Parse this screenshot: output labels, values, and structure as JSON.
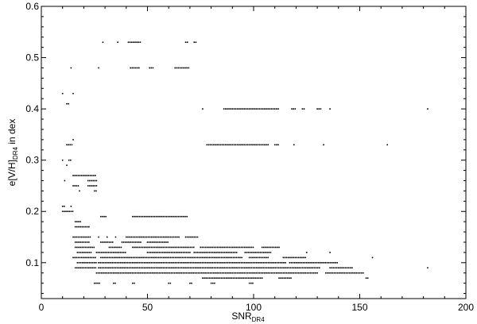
{
  "chart_data": {
    "type": "scatter",
    "title": "",
    "xlabel": "SNR",
    "xlabel_sub": "DR4",
    "ylabel_pre": "e[V/H]",
    "ylabel_sub": "DR4",
    "ylabel_post": " in dex",
    "xlim": [
      0,
      200
    ],
    "ylim": [
      0.03,
      0.6
    ],
    "xticks": [
      0,
      50,
      100,
      150,
      200
    ],
    "yticks": [
      0.1,
      0.2,
      0.3,
      0.4,
      0.5,
      0.6
    ],
    "grid": false,
    "marker_color": "#000000",
    "rows": [
      {
        "y": 0.53,
        "segments": [
          [
            29,
            29
          ],
          [
            36,
            36
          ],
          [
            41,
            47
          ],
          [
            68,
            69
          ],
          [
            72,
            73
          ]
        ]
      },
      {
        "y": 0.48,
        "segments": [
          [
            14,
            14
          ],
          [
            27,
            27
          ],
          [
            42,
            46
          ],
          [
            51,
            53
          ],
          [
            63,
            70
          ]
        ]
      },
      {
        "y": 0.43,
        "segments": [
          [
            10,
            10
          ],
          [
            15,
            15
          ]
        ]
      },
      {
        "y": 0.41,
        "segments": [
          [
            12,
            13
          ]
        ]
      },
      {
        "y": 0.4,
        "segments": [
          [
            76,
            76
          ],
          [
            86,
            112
          ],
          [
            118,
            120
          ],
          [
            123,
            124
          ],
          [
            130,
            132
          ],
          [
            136,
            136
          ],
          [
            182,
            182
          ]
        ]
      },
      {
        "y": 0.34,
        "segments": [
          [
            15,
            15
          ]
        ]
      },
      {
        "y": 0.33,
        "segments": [
          [
            12,
            15
          ],
          [
            78,
            107
          ],
          [
            110,
            112
          ],
          [
            119,
            119
          ],
          [
            133,
            133
          ],
          [
            163,
            163
          ]
        ]
      },
      {
        "y": 0.3,
        "segments": [
          [
            10,
            10
          ],
          [
            13,
            14
          ]
        ]
      },
      {
        "y": 0.29,
        "segments": [
          [
            12,
            12
          ]
        ]
      },
      {
        "y": 0.27,
        "segments": [
          [
            15,
            26
          ]
        ]
      },
      {
        "y": 0.26,
        "segments": [
          [
            11,
            11
          ],
          [
            22,
            26
          ]
        ]
      },
      {
        "y": 0.25,
        "segments": [
          [
            15,
            18
          ],
          [
            22,
            26
          ]
        ]
      },
      {
        "y": 0.24,
        "segments": [
          [
            18,
            18
          ],
          [
            25,
            26
          ]
        ]
      },
      {
        "y": 0.21,
        "segments": [
          [
            10,
            11
          ],
          [
            14,
            14
          ]
        ]
      },
      {
        "y": 0.2,
        "segments": [
          [
            10,
            15
          ]
        ]
      },
      {
        "y": 0.19,
        "segments": [
          [
            28,
            31
          ],
          [
            43,
            69
          ]
        ]
      },
      {
        "y": 0.18,
        "segments": [
          [
            16,
            19
          ]
        ]
      },
      {
        "y": 0.17,
        "segments": [
          [
            16,
            23
          ]
        ]
      },
      {
        "y": 0.15,
        "segments": [
          [
            15,
            23
          ],
          [
            27,
            27
          ],
          [
            31,
            31
          ],
          [
            35,
            35
          ],
          [
            40,
            65
          ],
          [
            68,
            74
          ]
        ]
      },
      {
        "y": 0.14,
        "segments": [
          [
            16,
            23
          ],
          [
            28,
            34
          ],
          [
            38,
            47
          ],
          [
            50,
            60
          ]
        ]
      },
      {
        "y": 0.13,
        "segments": [
          [
            16,
            25
          ],
          [
            32,
            38
          ],
          [
            43,
            72
          ],
          [
            75,
            100
          ],
          [
            104,
            112
          ]
        ]
      },
      {
        "y": 0.12,
        "segments": [
          [
            17,
            24
          ],
          [
            26,
            40
          ],
          [
            50,
            70
          ],
          [
            72,
            92
          ],
          [
            96,
            108
          ],
          [
            125,
            125
          ],
          [
            136,
            136
          ]
        ]
      },
      {
        "y": 0.11,
        "segments": [
          [
            15,
            26
          ],
          [
            28,
            95
          ],
          [
            98,
            107
          ],
          [
            114,
            125
          ],
          [
            156,
            156
          ]
        ]
      },
      {
        "y": 0.1,
        "segments": [
          [
            17,
            26
          ],
          [
            27,
            115
          ],
          [
            117,
            140
          ]
        ]
      },
      {
        "y": 0.09,
        "segments": [
          [
            16,
            26
          ],
          [
            27,
            131
          ],
          [
            136,
            147
          ],
          [
            182,
            182
          ]
        ]
      },
      {
        "y": 0.08,
        "segments": [
          [
            26,
            130
          ],
          [
            134,
            152
          ]
        ]
      },
      {
        "y": 0.07,
        "segments": [
          [
            76,
            104
          ],
          [
            112,
            118
          ],
          [
            153,
            154
          ]
        ]
      },
      {
        "y": 0.06,
        "segments": [
          [
            25,
            28
          ],
          [
            34,
            35
          ],
          [
            43,
            44
          ],
          [
            60,
            61
          ],
          [
            70,
            71
          ],
          [
            80,
            82
          ],
          [
            98,
            100
          ]
        ]
      }
    ]
  }
}
